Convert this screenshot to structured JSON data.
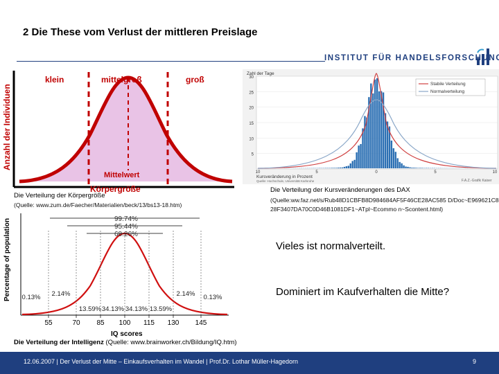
{
  "title": "2 Die These vom Verlust der mittleren Preislage",
  "logo_text": "INSTITUT FÜR HANDELSFORSCHUNG",
  "chart1": {
    "label_small": "klein",
    "label_mid": "mittelgroß",
    "label_big": "groß",
    "ylabel": "Anzahl der Individuen",
    "mean_label": "Mittelwert",
    "xlabel": "Körpergröße"
  },
  "chart1_caption": "Die Verteilung der Körpergröße",
  "chart1_source": "(Quelle: www.zum.de/Faecher/Materialien/beck/13/bs13-18.htm)",
  "chart2": {
    "axis_title": "Zahl der Tage",
    "legend": [
      "Stabile Verteilung",
      "Normalverteilung"
    ],
    "yticks": [
      "30",
      "25",
      "20",
      "15",
      "10",
      "5"
    ],
    "xticks": [
      "10",
      "5",
      "0",
      "5",
      "10"
    ],
    "xlabel": "Kursveränderung in Prozent",
    "source_note": "Quelle: Hochschule, Universität Karlsruhe",
    "credit": "F.A.Z.-Grafik Kaiser"
  },
  "chart2_caption": "Die Verteilung der Kursveränderungen des DAX",
  "chart2_source": "(Quelle:ww.faz.net/s/Rub48D1CBFB8D984684AF5F46CE28AC585 D/Doc~E969621C828F3407DA70C0D46B1081DF1~ATpl~Ecommo n~Scontent.html)",
  "chart3": {
    "ylabel": "Percentage of population",
    "bands": [
      "99.74%",
      "95.44%",
      "68.26%"
    ],
    "tail_pcts": [
      "0.13%",
      "2.14%",
      "13.59%",
      "34.13%",
      "34.13%",
      "13.59%",
      "2.14%",
      "0.13%"
    ],
    "xticks": [
      "55",
      "70",
      "85",
      "100",
      "115",
      "130",
      "145"
    ],
    "xlabel": "IQ scores"
  },
  "chart3_caption_bold": "Die Verteilung der Intelligenz",
  "chart3_caption_rest": " (Quelle: www.brainworker.ch/Bildung/IQ.htm)",
  "text1": "Vieles ist normalverteilt.",
  "text2": "Dominiert im Kaufverhalten die Mitte?",
  "footer": "12.06.2007 | Der Verlust der Mitte – Einkaufsverhalten im Wandel | Prof.Dr. Lothar Müller-Hagedorn",
  "page_number": "9",
  "colors": {
    "brand": "#1f3f7f",
    "bell_fill": "#e9c3e6",
    "bell_red": "#c00000",
    "histogram": "#2b6fb3"
  }
}
